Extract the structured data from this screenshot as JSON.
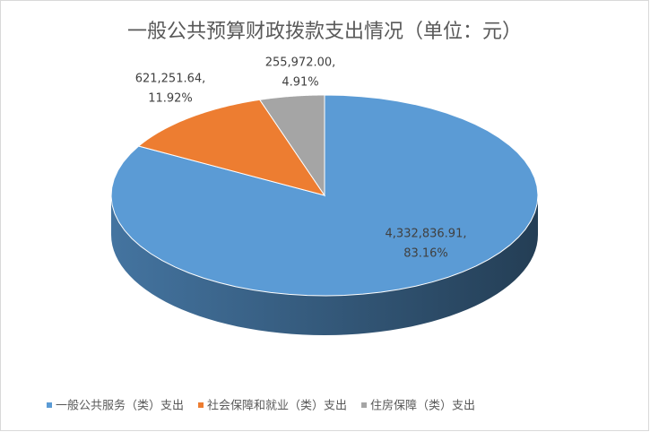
{
  "chart_data": {
    "type": "pie3d",
    "title": "一般公共预算财政拨款支出情况（单位：元）",
    "categories": [
      "一般公共服务（类）支出",
      "社会保障和就业（类）支出",
      "住房保障（类）支出"
    ],
    "values": [
      4332836.91,
      621251.64,
      255972.0
    ],
    "value_labels": [
      "4,332,836.91,",
      "621,251.64,",
      "255,972.00,"
    ],
    "percent_labels": [
      "83.16%",
      "11.92%",
      "4.91%"
    ],
    "colors": [
      "#5b9bd5",
      "#ed7d31",
      "#a5a5a5"
    ],
    "legend": "bottom"
  }
}
